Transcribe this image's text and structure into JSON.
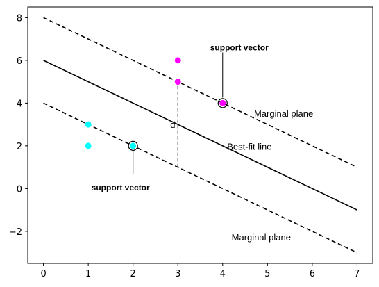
{
  "chart_data": {
    "type": "scatter",
    "title": "",
    "xlabel": "",
    "ylabel": "",
    "xlim": [
      -0.35,
      7.35
    ],
    "ylim": [
      -3.5,
      8.5
    ],
    "grid": false,
    "x_ticks": [
      0,
      1,
      2,
      3,
      4,
      5,
      6,
      7
    ],
    "y_ticks": [
      -2,
      0,
      2,
      4,
      6,
      8
    ],
    "lines": [
      {
        "role": "upper-marginal",
        "style": "dashed",
        "x": [
          0,
          7
        ],
        "y": [
          8,
          1
        ]
      },
      {
        "role": "best-fit",
        "style": "solid",
        "x": [
          0,
          7
        ],
        "y": [
          6,
          -1
        ]
      },
      {
        "role": "lower-marginal",
        "style": "dashed",
        "x": [
          0,
          7
        ],
        "y": [
          4,
          -3
        ]
      }
    ],
    "distance_line": {
      "x": 3,
      "y_start": 1,
      "y_end": 5,
      "label": "d"
    },
    "series": [
      {
        "color": "#00ffff",
        "points": [
          [
            1,
            3
          ],
          [
            1,
            2
          ],
          [
            2,
            2
          ]
        ]
      },
      {
        "color": "#ff00ff",
        "points": [
          [
            3,
            6
          ],
          [
            3,
            5
          ],
          [
            4,
            4
          ]
        ]
      }
    ],
    "support_vectors": [
      [
        2,
        2
      ],
      [
        4,
        4
      ]
    ],
    "annotations": [
      {
        "text": "support vector",
        "bold": true,
        "arrow_to": [
          4,
          4
        ],
        "text_at": [
          4.35,
          6.6
        ]
      },
      {
        "text": "support vector",
        "bold": true,
        "arrow_to": [
          2,
          2
        ],
        "text_at": [
          1.65,
          0.05
        ]
      },
      {
        "text": "Marginal plane",
        "bold": false,
        "text_at": [
          4.7,
          3.5
        ]
      },
      {
        "text": "Best-fit line",
        "bold": false,
        "text_at": [
          4.1,
          1.95
        ]
      },
      {
        "text": "Marginal plane",
        "bold": false,
        "text_at": [
          4.2,
          -2.3
        ]
      }
    ]
  }
}
